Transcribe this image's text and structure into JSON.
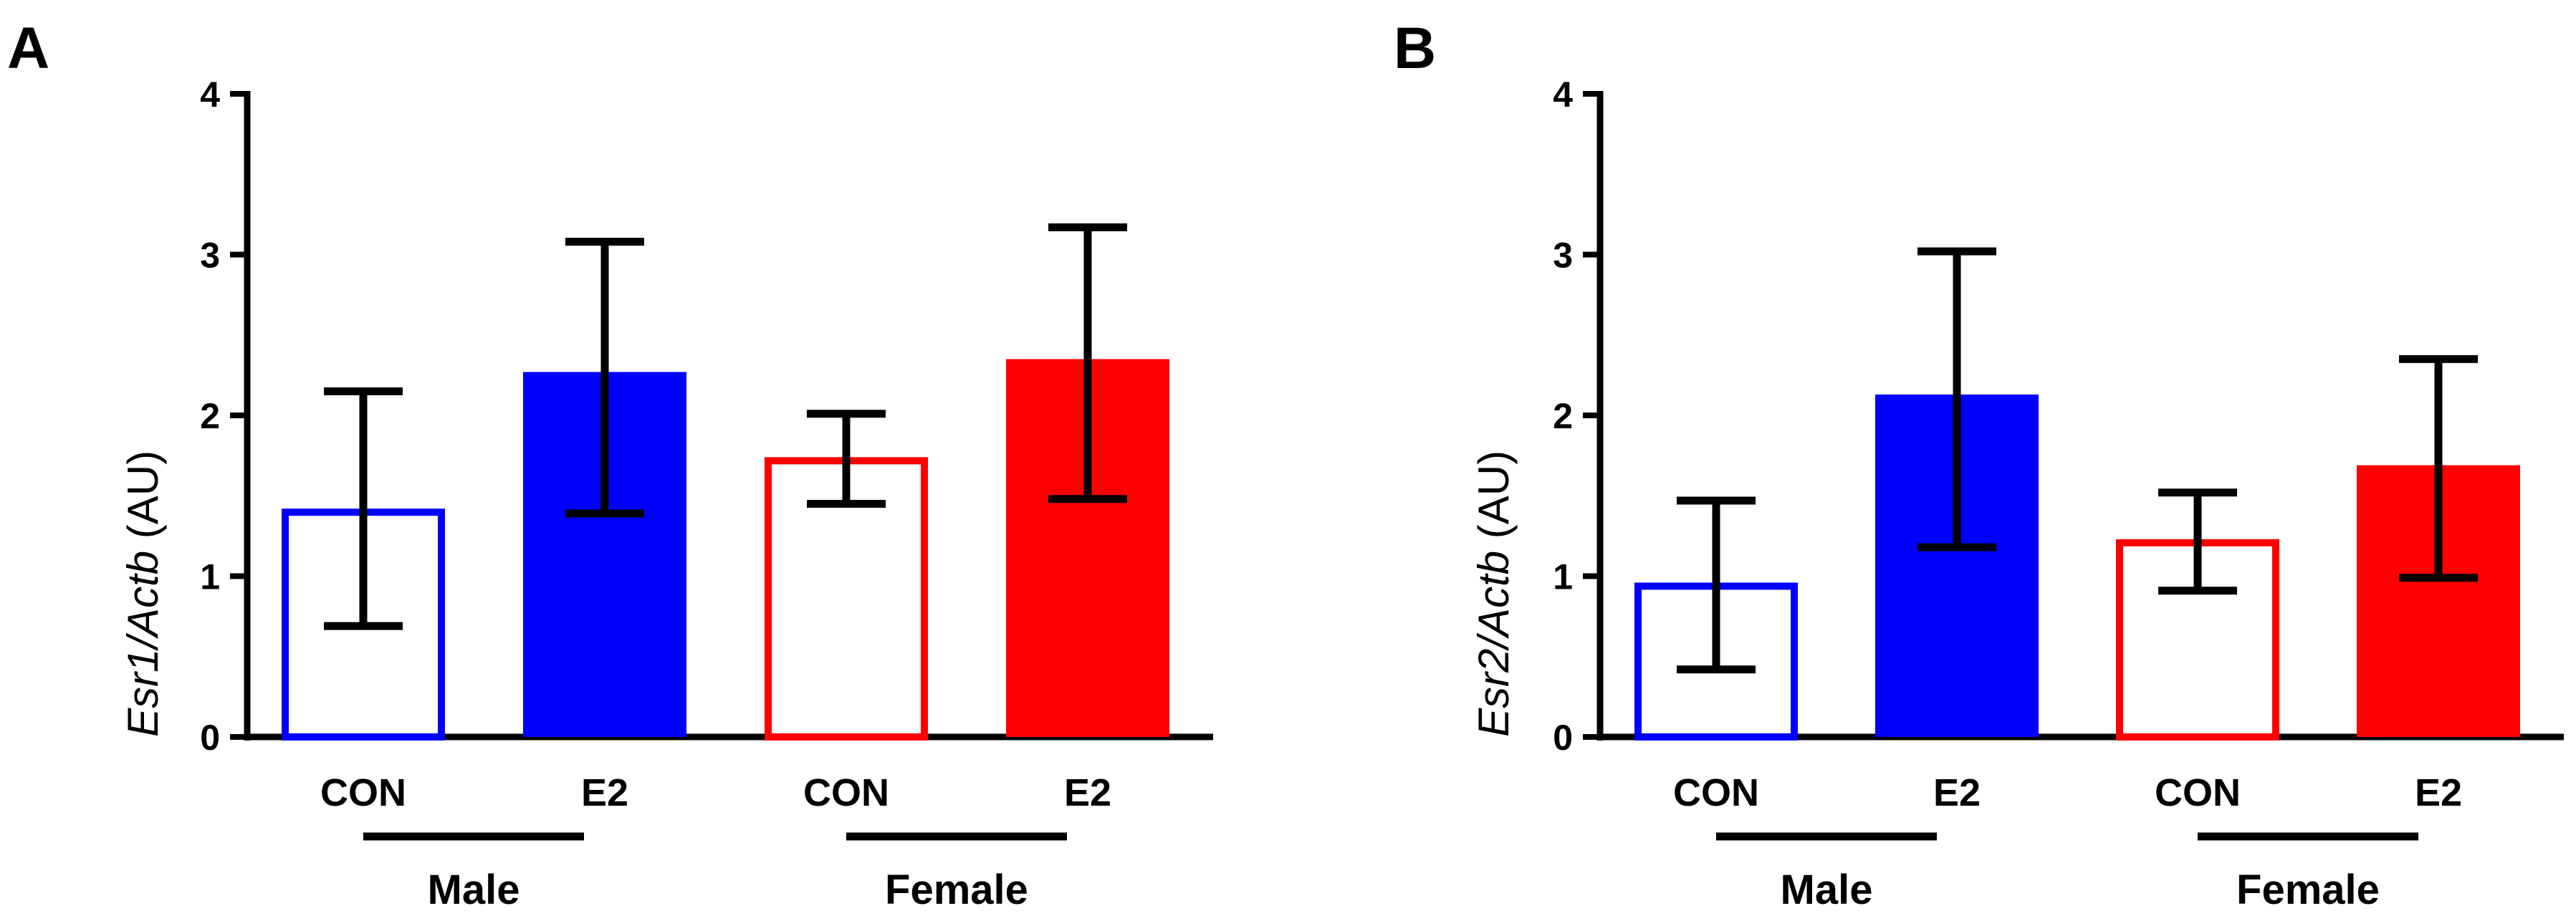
{
  "chart_data": [
    {
      "type": "bar",
      "panel": "A",
      "ylabel_gene": "Esr1/Actb",
      "ylabel_unit": "(AU)",
      "ylim": [
        0,
        4
      ],
      "yticks": [
        0,
        1,
        2,
        3,
        4
      ],
      "categories": [
        "CON",
        "E2",
        "CON",
        "E2"
      ],
      "groups": [
        "Male",
        "Female"
      ],
      "values": [
        1.42,
        2.27,
        1.74,
        2.35
      ],
      "error_high": [
        2.15,
        3.08,
        2.01,
        3.17
      ],
      "error_low": [
        0.69,
        1.39,
        1.45,
        1.48
      ],
      "colors": [
        "#0000ff",
        "#0000ff",
        "#ff0000",
        "#ff0000"
      ],
      "filled": [
        false,
        true,
        false,
        true
      ]
    },
    {
      "type": "bar",
      "panel": "B",
      "ylabel_gene": "Esr2/Actb",
      "ylabel_unit": "(AU)",
      "ylim": [
        0,
        4
      ],
      "yticks": [
        0,
        1,
        2,
        3,
        4
      ],
      "categories": [
        "CON",
        "E2",
        "CON",
        "E2"
      ],
      "groups": [
        "Male",
        "Female"
      ],
      "values": [
        0.96,
        2.13,
        1.23,
        1.69
      ],
      "error_high": [
        1.47,
        3.02,
        1.52,
        2.35
      ],
      "error_low": [
        0.42,
        1.18,
        0.91,
        0.99
      ],
      "colors": [
        "#0000ff",
        "#0000ff",
        "#ff0000",
        "#ff0000"
      ],
      "filled": [
        false,
        true,
        false,
        true
      ]
    }
  ]
}
